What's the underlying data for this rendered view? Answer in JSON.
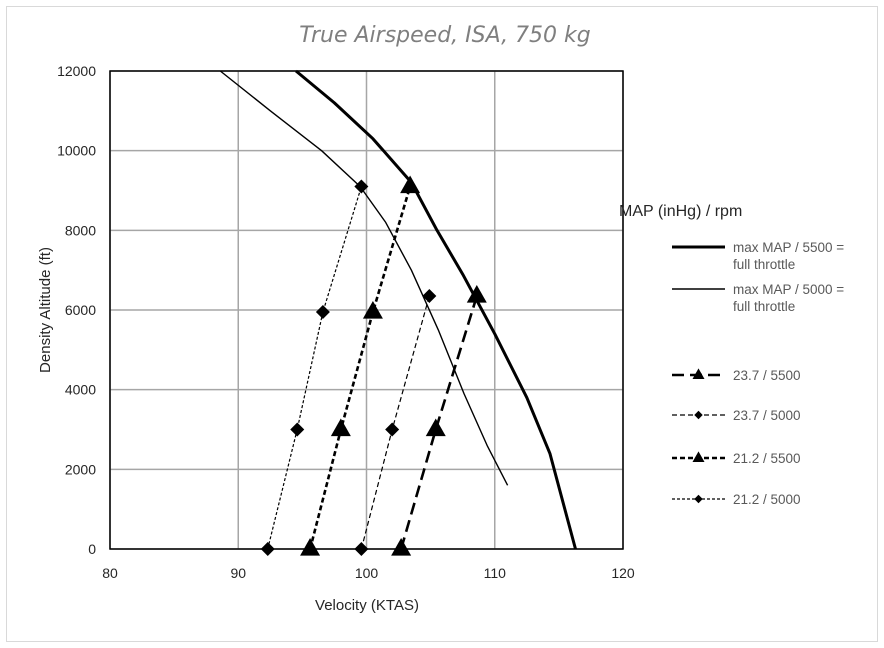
{
  "chart_data": {
    "type": "line",
    "title": "True Airspeed, ISA, 750 kg",
    "xlabel": "Velocity (KTAS)",
    "ylabel": "Density Altitude (ft)",
    "xlim": [
      80,
      120
    ],
    "ylim": [
      0,
      12000
    ],
    "x_ticks": [
      "80",
      "90",
      "100",
      "110",
      "120"
    ],
    "y_ticks": [
      "0",
      "2000",
      "4000",
      "6000",
      "8000",
      "10000",
      "12000"
    ],
    "grid": true,
    "legend_title": "MAP (inHg) / rpm",
    "legend_position": "right",
    "series": [
      {
        "name": "max MAP  / 5500 = full throttle",
        "name_lines": [
          "max MAP  / 5500 =",
          "full throttle"
        ],
        "style": "solid-thick",
        "marker": "none",
        "x": [
          94.5,
          97.5,
          100.5,
          103.5,
          105.5,
          107.5,
          110,
          112.5,
          114.3,
          116.3
        ],
        "y": [
          12000,
          11200,
          10300,
          9200,
          8000,
          6900,
          5400,
          3800,
          2400,
          0
        ]
      },
      {
        "name": "max MAP  / 5000 = full throttle",
        "name_lines": [
          "max MAP  / 5000 =",
          "full throttle"
        ],
        "style": "solid-thin",
        "marker": "none",
        "x": [
          88.6,
          92.5,
          96.5,
          99.5,
          101.5,
          103.5,
          105.6,
          107.6,
          109.4,
          111
        ],
        "y": [
          12000,
          11000,
          10000,
          9100,
          8200,
          7000,
          5500,
          3900,
          2600,
          1600
        ]
      },
      {
        "name": "23.7  / 5500",
        "style": "long-dash-thick",
        "marker": "triangle",
        "x": [
          102.7,
          105.4,
          108.6
        ],
        "y": [
          0,
          3000,
          6350
        ]
      },
      {
        "name": "23.7  / 5000",
        "style": "dash-thin",
        "marker": "diamond",
        "x": [
          99.6,
          102,
          104.9
        ],
        "y": [
          0,
          3000,
          6350
        ]
      },
      {
        "name": "21.2  / 5500",
        "style": "short-dash-thick",
        "marker": "triangle",
        "x": [
          95.6,
          98,
          100.5,
          103.4
        ],
        "y": [
          0,
          3000,
          5950,
          9100
        ]
      },
      {
        "name": "21.2  / 5000",
        "style": "short-dash-thin",
        "marker": "diamond",
        "x": [
          92.3,
          94.6,
          96.6,
          99.6
        ],
        "y": [
          0,
          3000,
          5950,
          9100
        ]
      }
    ]
  }
}
